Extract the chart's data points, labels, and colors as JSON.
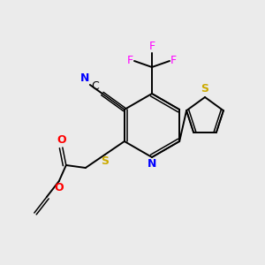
{
  "bg_color": "#ebebeb",
  "atom_colors": {
    "N": "#0000ff",
    "C": "#000000",
    "S": "#ccaa00",
    "O": "#ff0000",
    "F": "#ff00ff"
  },
  "figsize": [
    3.0,
    3.0
  ],
  "dpi": 100
}
